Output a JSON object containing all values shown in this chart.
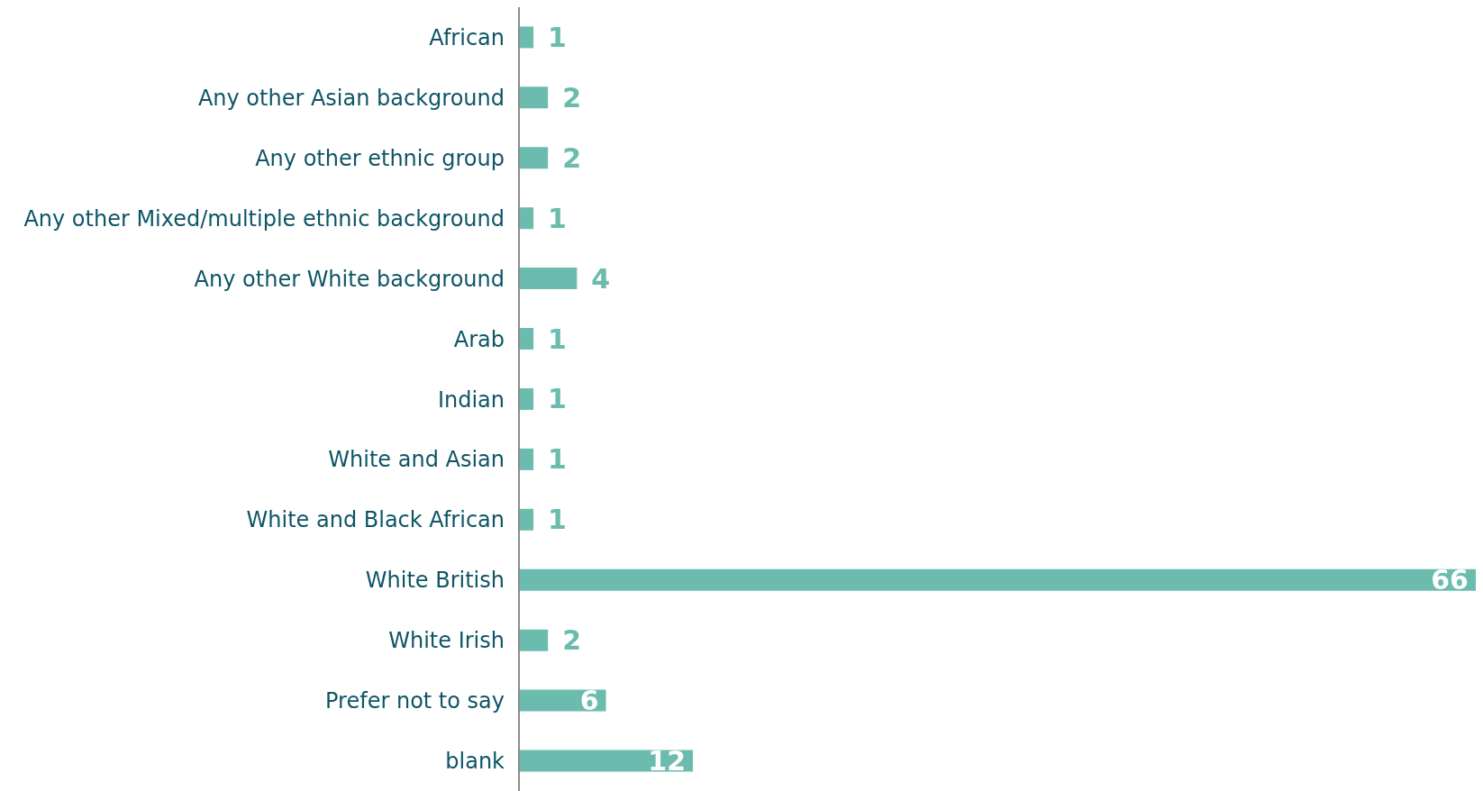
{
  "chart_data": {
    "type": "bar",
    "orientation": "horizontal",
    "categories": [
      "African",
      "Any other Asian background",
      "Any other ethnic group",
      "Any other Mixed/multiple ethnic background",
      "Any other White background",
      "Arab",
      "Indian",
      "White and Asian",
      "White and Black African",
      "White British",
      "White Irish",
      "Prefer not to say",
      "blank"
    ],
    "values": [
      1,
      2,
      2,
      1,
      4,
      1,
      1,
      1,
      1,
      66,
      2,
      6,
      12
    ],
    "color": "#6bbcae",
    "data_labels": true,
    "grid": false,
    "legend": false,
    "tick_labels": "y"
  }
}
